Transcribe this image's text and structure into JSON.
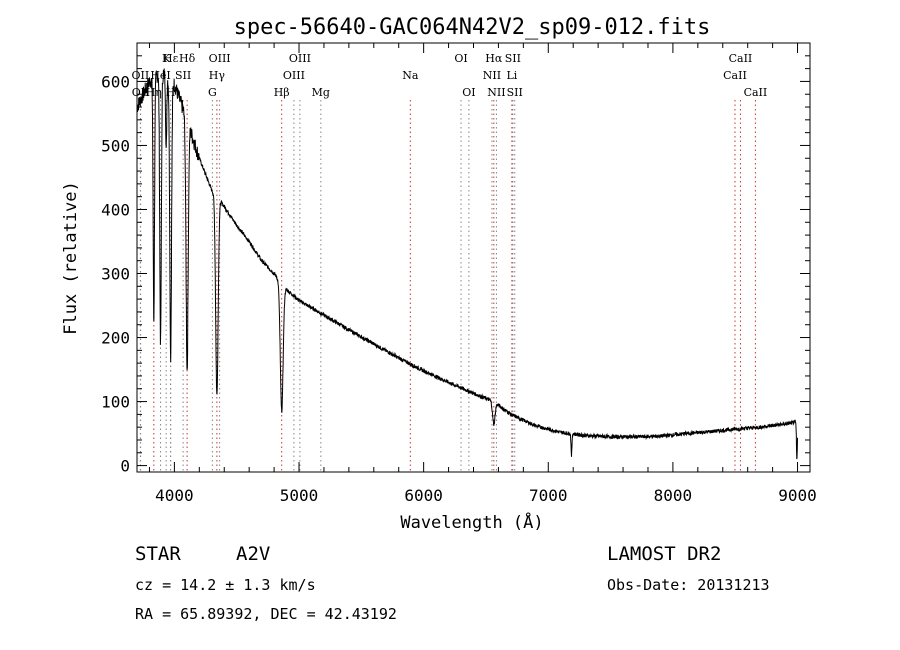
{
  "chart_data": {
    "type": "line",
    "title": "spec-56640-GAC064N42V2_sp09-012.fits",
    "xlabel": "Wavelength (Å)",
    "ylabel": "Flux (relative)",
    "xlim": [
      3700,
      9100
    ],
    "ylim": [
      -10,
      660
    ],
    "xticks": [
      4000,
      5000,
      6000,
      7000,
      8000,
      9000
    ],
    "yticks": [
      0,
      100,
      200,
      300,
      400,
      500,
      600
    ],
    "grid": false,
    "series": [
      {
        "color": "#000000",
        "continuum": [
          [
            3700,
            560
          ],
          [
            3800,
            600
          ],
          [
            3900,
            615
          ],
          [
            4000,
            595
          ],
          [
            4100,
            540
          ],
          [
            4200,
            480
          ],
          [
            4300,
            430
          ],
          [
            4400,
            405
          ],
          [
            4500,
            375
          ],
          [
            4600,
            350
          ],
          [
            4700,
            320
          ],
          [
            4800,
            300
          ],
          [
            4900,
            275
          ],
          [
            5000,
            258
          ],
          [
            5200,
            235
          ],
          [
            5400,
            212
          ],
          [
            5600,
            190
          ],
          [
            5800,
            168
          ],
          [
            6000,
            148
          ],
          [
            6200,
            130
          ],
          [
            6400,
            113
          ],
          [
            6560,
            100
          ],
          [
            6700,
            80
          ],
          [
            6900,
            62
          ],
          [
            7100,
            52
          ],
          [
            7300,
            47
          ],
          [
            7500,
            45
          ],
          [
            7700,
            45
          ],
          [
            7900,
            46
          ],
          [
            8100,
            50
          ],
          [
            8300,
            53
          ],
          [
            8500,
            57
          ],
          [
            8700,
            60
          ],
          [
            8900,
            65
          ],
          [
            9000,
            68
          ]
        ],
        "absorption_features": [
          {
            "center": 3835,
            "depth": 380,
            "width": 8
          },
          {
            "center": 3889,
            "depth": 420,
            "width": 9
          },
          {
            "center": 3934,
            "depth": 120,
            "width": 6
          },
          {
            "center": 3970,
            "depth": 430,
            "width": 10
          },
          {
            "center": 4102,
            "depth": 390,
            "width": 12
          },
          {
            "center": 4341,
            "depth": 310,
            "width": 14
          },
          {
            "center": 4861,
            "depth": 200,
            "width": 16
          },
          {
            "center": 6563,
            "depth": 35,
            "width": 14
          },
          {
            "center": 7186,
            "depth": 35,
            "width": 5
          },
          {
            "center": 8995,
            "depth": 60,
            "width": 5
          }
        ],
        "noise": 6
      }
    ],
    "line_markers": [
      {
        "label": "Hε",
        "wavelength": 3970,
        "row": 1,
        "color": "#cc3333"
      },
      {
        "label": "K",
        "wavelength": 3934,
        "row": 1,
        "color": "#888888"
      },
      {
        "label": "Hδ",
        "wavelength": 4102,
        "row": 1,
        "color": "#cc3333"
      },
      {
        "label": "OII",
        "wavelength": 3727,
        "row": 2,
        "color": "#888888"
      },
      {
        "label": "HeI",
        "wavelength": 3889,
        "row": 2,
        "color": "#888888"
      },
      {
        "label": "SII",
        "wavelength": 4070,
        "row": 2,
        "color": "#888888"
      },
      {
        "label": "OII",
        "wavelength": 3729,
        "row": 3,
        "color": "#888888"
      },
      {
        "label": "Hη",
        "wavelength": 3835,
        "row": 3,
        "color": "#cc3333"
      },
      {
        "label": "H",
        "wavelength": 3969,
        "row": 3,
        "color": "#888888"
      },
      {
        "label": "OIII",
        "wavelength": 4363,
        "row": 1,
        "color": "#888888"
      },
      {
        "label": "Hγ",
        "wavelength": 4341,
        "row": 2,
        "color": "#cc3333"
      },
      {
        "label": "G",
        "wavelength": 4305,
        "row": 3,
        "color": "#888888"
      },
      {
        "label": "OIII",
        "wavelength": 5007,
        "row": 1,
        "color": "#888888"
      },
      {
        "label": "OIII",
        "wavelength": 4959,
        "row": 2,
        "color": "#888888"
      },
      {
        "label": "Hβ",
        "wavelength": 4861,
        "row": 3,
        "color": "#cc3333"
      },
      {
        "label": "Mg",
        "wavelength": 5175,
        "row": 3,
        "color": "#888888"
      },
      {
        "label": "Na",
        "wavelength": 5893,
        "row": 2,
        "color": "#cc3333"
      },
      {
        "label": "OI",
        "wavelength": 6300,
        "row": 1,
        "color": "#888888"
      },
      {
        "label": "OI",
        "wavelength": 6363,
        "row": 3,
        "color": "#888888"
      },
      {
        "label": "Hα",
        "wavelength": 6563,
        "row": 1,
        "color": "#cc3333"
      },
      {
        "label": "SII",
        "wavelength": 6716,
        "row": 1,
        "color": "#888888"
      },
      {
        "label": "NII",
        "wavelength": 6548,
        "row": 2,
        "color": "#888888"
      },
      {
        "label": "Li",
        "wavelength": 6708,
        "row": 2,
        "color": "#cc3333"
      },
      {
        "label": "NII",
        "wavelength": 6584,
        "row": 3,
        "color": "#888888"
      },
      {
        "label": "SII",
        "wavelength": 6731,
        "row": 3,
        "color": "#888888"
      },
      {
        "label": "CaII",
        "wavelength": 8542,
        "row": 1,
        "color": "#cc3333"
      },
      {
        "label": "CaII",
        "wavelength": 8498,
        "row": 2,
        "color": "#cc3333"
      },
      {
        "label": "CaII",
        "wavelength": 8662,
        "row": 3,
        "color": "#cc3333"
      }
    ]
  },
  "info": {
    "class_label": "STAR",
    "subclass": "A2V",
    "survey": "LAMOST DR2",
    "redshift": "cz = 14.2 ± 1.3 km/s",
    "obs_date": "Obs-Date: 20131213",
    "coords": "RA =  65.89392, DEC =  42.43192"
  }
}
